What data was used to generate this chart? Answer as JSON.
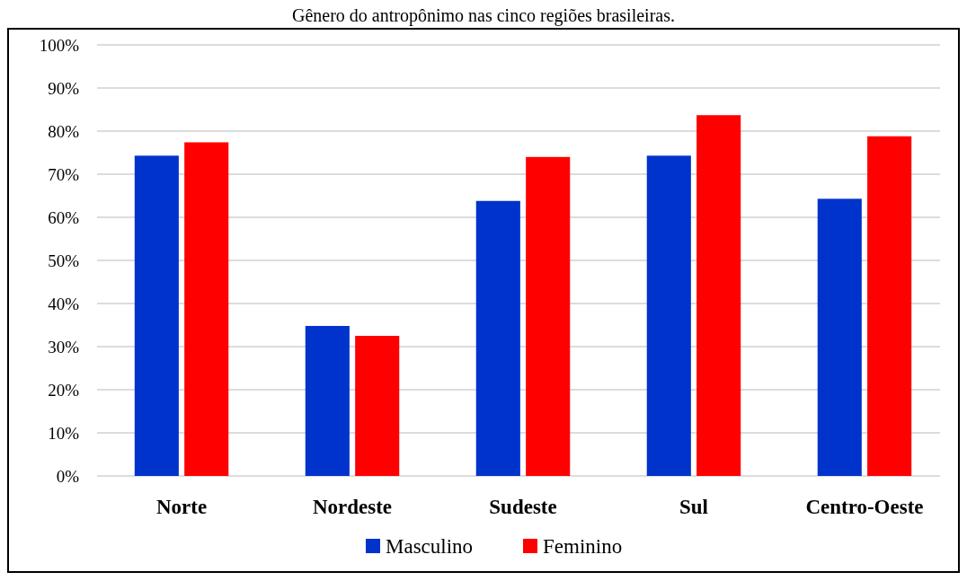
{
  "chart_data": {
    "type": "bar",
    "title": "Gênero do antropônimo nas cinco regiões brasileiras.",
    "categories": [
      "Norte",
      "Nordeste",
      "Sudeste",
      "Sul",
      "Centro-Oeste"
    ],
    "series": [
      {
        "name": "Masculino",
        "color": "#0033cc",
        "values": [
          74.3,
          34.8,
          63.8,
          74.3,
          64.3
        ]
      },
      {
        "name": "Feminino",
        "color": "#ff0000",
        "values": [
          77.4,
          32.5,
          74.0,
          83.7,
          78.8
        ]
      }
    ],
    "ylim": [
      0,
      100
    ],
    "yticks": [
      {
        "value": 0,
        "label": "0%"
      },
      {
        "value": 10,
        "label": "10%"
      },
      {
        "value": 20,
        "label": "20%"
      },
      {
        "value": 30,
        "label": "30%"
      },
      {
        "value": 40,
        "label": "40%"
      },
      {
        "value": 50,
        "label": "50%"
      },
      {
        "value": 60,
        "label": "60%"
      },
      {
        "value": 70,
        "label": "70%"
      },
      {
        "value": 80,
        "label": "80%"
      },
      {
        "value": 90,
        "label": "90%"
      },
      {
        "value": 100,
        "label": "100%"
      }
    ],
    "grid": "y",
    "legend": "bottom"
  }
}
